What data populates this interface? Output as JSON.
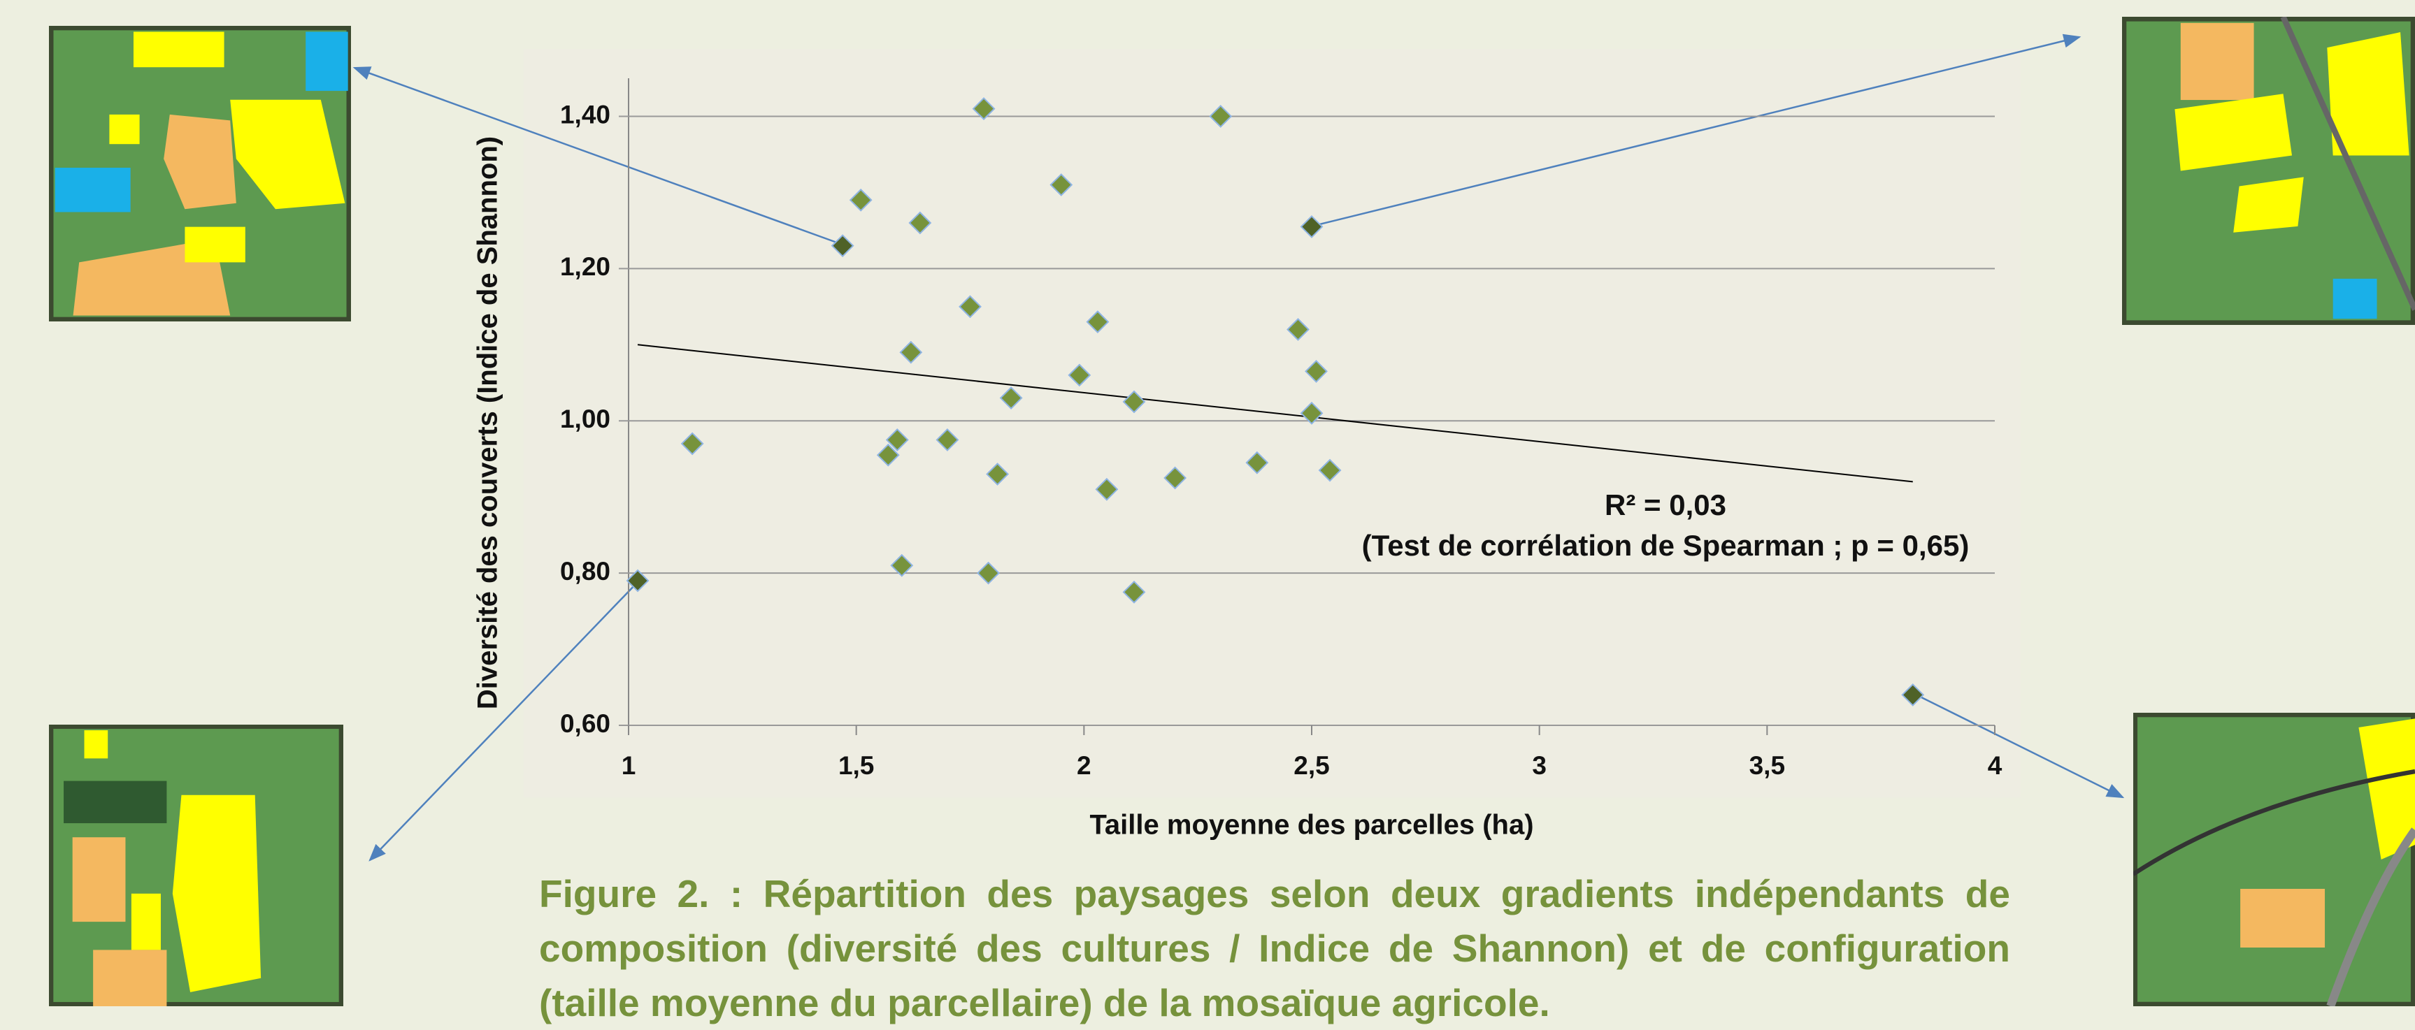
{
  "chart_data": {
    "type": "scatter",
    "y_label": "Diversité des couverts (Indice de Shannon)",
    "x_label": "Taille moyenne des parcelles (ha)",
    "annotations": [
      "R² = 0,03",
      "(Test de corrélation de Spearman ; p = 0,65)"
    ],
    "caption": "Figure 2. : Répartition des paysages selon deux gradients indépendants de composition (diversité des cultures / Indice de Shannon) et de configuration (taille moyenne du parcellaire) de la mosaïque agricole.",
    "x": [
      1.51,
      1.64,
      1.78,
      1.95,
      2.3,
      1.75,
      2.03,
      2.47,
      1.62,
      1.99,
      2.51,
      1.84,
      2.11,
      2.5,
      1.14,
      1.59,
      1.57,
      1.7,
      2.38,
      2.54,
      1.81,
      2.05,
      2.2,
      1.6,
      1.79,
      2.11
    ],
    "y": [
      1.29,
      1.26,
      1.41,
      1.31,
      1.4,
      1.15,
      1.13,
      1.12,
      1.09,
      1.06,
      1.065,
      1.03,
      1.025,
      1.01,
      0.97,
      0.975,
      0.955,
      0.975,
      0.945,
      0.935,
      0.93,
      0.91,
      0.925,
      0.81,
      0.8,
      0.775
    ],
    "color": "#77933c",
    "highlight": {
      "x": [
        1.47,
        2.5,
        1.02,
        3.82
      ],
      "y": [
        1.23,
        1.255,
        0.79,
        0.64
      ],
      "color": "#4f6228"
    },
    "trendline": {
      "x": [
        1.02,
        3.82
      ],
      "y": [
        1.1,
        0.92
      ],
      "color": "#000000"
    },
    "xlim": [
      1,
      4
    ],
    "ylim": [
      0.6,
      1.45
    ],
    "xticks": [
      1,
      {
        "value": 1.5,
        "label": "1,5"
      },
      2,
      {
        "value": 2.5,
        "label": "2,5"
      },
      3,
      {
        "value": 3.5,
        "label": "3,5"
      },
      4
    ],
    "yticks": [
      {
        "value": 0.6,
        "label": "0,60"
      },
      {
        "value": 0.8,
        "label": "0,80"
      },
      {
        "value": 1.0,
        "label": "1,00"
      },
      {
        "value": 1.2,
        "label": "1,20"
      },
      {
        "value": 1.4,
        "label": "1,40"
      }
    ],
    "grid": true
  }
}
